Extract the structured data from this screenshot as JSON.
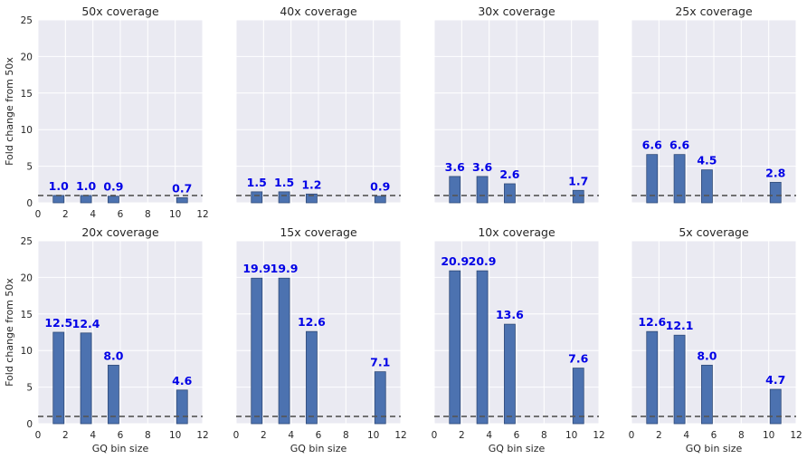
{
  "figure": {
    "background": "#ffffff",
    "panel_background": "#eaeaf2",
    "grid_color": "#ffffff",
    "bar_color": "#4c72b0",
    "bar_edge_color": "#2f4a78",
    "label_color": "#0000e6",
    "ref_line_color": "#555555"
  },
  "chart_data": [
    {
      "type": "bar",
      "title": "50x coverage",
      "x": [
        1.5,
        3.5,
        5.5,
        10.5
      ],
      "values": [
        1.0,
        1.0,
        0.9,
        0.7
      ],
      "data_labels": [
        "1.0",
        "1.0",
        "0.9",
        "0.7"
      ],
      "xlim": [
        0,
        12
      ],
      "ylim": [
        0,
        25
      ],
      "xticks": [
        "0",
        "2",
        "4",
        "6",
        "8",
        "10",
        "12"
      ],
      "yticks": [
        "0",
        "5",
        "10",
        "15",
        "20",
        "25"
      ],
      "xlabel": "",
      "ylabel": "Fold change from 50x",
      "reference_line": 1,
      "grid": true
    },
    {
      "type": "bar",
      "title": "40x coverage",
      "x": [
        1.5,
        3.5,
        5.5,
        10.5
      ],
      "values": [
        1.5,
        1.5,
        1.2,
        0.9
      ],
      "data_labels": [
        "1.5",
        "1.5",
        "1.2",
        "0.9"
      ],
      "xlim": [
        0,
        12
      ],
      "ylim": [
        0,
        25
      ],
      "xticks": [],
      "yticks": [],
      "xlabel": "",
      "ylabel": "",
      "reference_line": 1,
      "grid": true
    },
    {
      "type": "bar",
      "title": "30x coverage",
      "x": [
        1.5,
        3.5,
        5.5,
        10.5
      ],
      "values": [
        3.6,
        3.6,
        2.6,
        1.7
      ],
      "data_labels": [
        "3.6",
        "3.6",
        "2.6",
        "1.7"
      ],
      "xlim": [
        0,
        12
      ],
      "ylim": [
        0,
        25
      ],
      "xticks": [],
      "yticks": [],
      "xlabel": "",
      "ylabel": "",
      "reference_line": 1,
      "grid": true
    },
    {
      "type": "bar",
      "title": "25x coverage",
      "x": [
        1.5,
        3.5,
        5.5,
        10.5
      ],
      "values": [
        6.6,
        6.6,
        4.5,
        2.8
      ],
      "data_labels": [
        "6.6",
        "6.6",
        "4.5",
        "2.8"
      ],
      "xlim": [
        0,
        12
      ],
      "ylim": [
        0,
        25
      ],
      "xticks": [],
      "yticks": [],
      "xlabel": "",
      "ylabel": "",
      "reference_line": 1,
      "grid": true
    },
    {
      "type": "bar",
      "title": "20x coverage",
      "x": [
        1.5,
        3.5,
        5.5,
        10.5
      ],
      "values": [
        12.5,
        12.4,
        8.0,
        4.6
      ],
      "data_labels": [
        "12.5",
        "12.4",
        "8.0",
        "4.6"
      ],
      "xlim": [
        0,
        12
      ],
      "ylim": [
        0,
        25
      ],
      "xticks": [
        "0",
        "2",
        "4",
        "6",
        "8",
        "10",
        "12"
      ],
      "yticks": [
        "0",
        "5",
        "10",
        "15",
        "20",
        "25"
      ],
      "xlabel": "GQ bin size",
      "ylabel": "Fold change from 50x",
      "reference_line": 1,
      "grid": true
    },
    {
      "type": "bar",
      "title": "15x coverage",
      "x": [
        1.5,
        3.5,
        5.5,
        10.5
      ],
      "values": [
        19.9,
        19.9,
        12.6,
        7.1
      ],
      "data_labels": [
        "19.9",
        "19.9",
        "12.6",
        "7.1"
      ],
      "xlim": [
        0,
        12
      ],
      "ylim": [
        0,
        25
      ],
      "xticks": [
        "0",
        "2",
        "4",
        "6",
        "8",
        "10",
        "12"
      ],
      "yticks": [],
      "xlabel": "GQ bin size",
      "ylabel": "",
      "reference_line": 1,
      "grid": true
    },
    {
      "type": "bar",
      "title": "10x coverage",
      "x": [
        1.5,
        3.5,
        5.5,
        10.5
      ],
      "values": [
        20.9,
        20.9,
        13.6,
        7.6
      ],
      "data_labels": [
        "20.9",
        "20.9",
        "13.6",
        "7.6"
      ],
      "xlim": [
        0,
        12
      ],
      "ylim": [
        0,
        25
      ],
      "xticks": [
        "0",
        "2",
        "4",
        "6",
        "8",
        "10",
        "12"
      ],
      "yticks": [],
      "xlabel": "GQ bin size",
      "ylabel": "",
      "reference_line": 1,
      "grid": true
    },
    {
      "type": "bar",
      "title": "5x coverage",
      "x": [
        1.5,
        3.5,
        5.5,
        10.5
      ],
      "values": [
        12.6,
        12.1,
        8.0,
        4.7
      ],
      "data_labels": [
        "12.6",
        "12.1",
        "8.0",
        "4.7"
      ],
      "xlim": [
        0,
        12
      ],
      "ylim": [
        0,
        25
      ],
      "xticks": [
        "0",
        "2",
        "4",
        "6",
        "8",
        "10",
        "12"
      ],
      "yticks": [],
      "xlabel": "GQ bin size",
      "ylabel": "",
      "reference_line": 1,
      "grid": true
    }
  ]
}
